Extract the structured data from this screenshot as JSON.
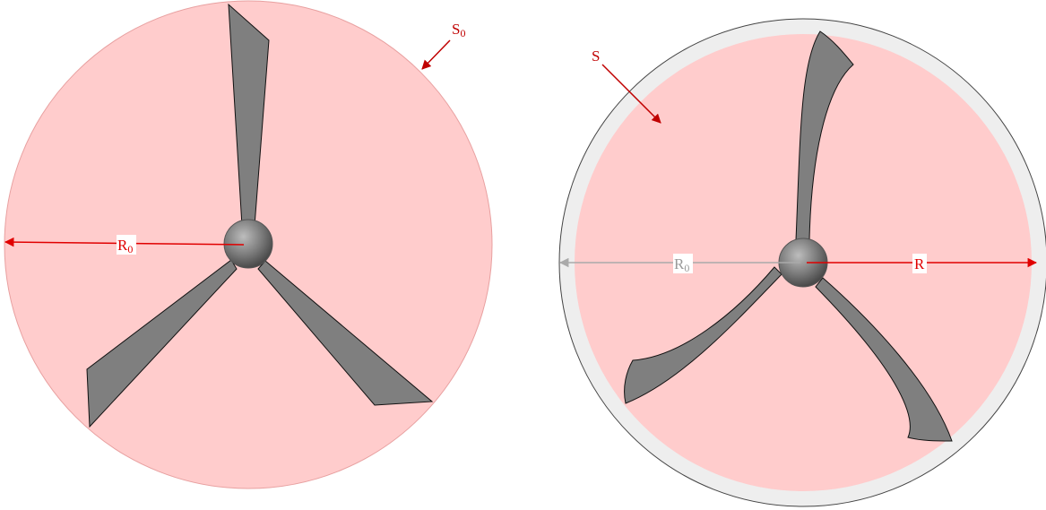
{
  "left": {
    "area_label": {
      "main": "S",
      "sub": "0"
    },
    "radius_label": {
      "main": "R",
      "sub": "0"
    }
  },
  "right": {
    "area_label": "S",
    "outer_radius_label": {
      "main": "R",
      "sub": "0"
    },
    "radius_label": "R"
  }
}
